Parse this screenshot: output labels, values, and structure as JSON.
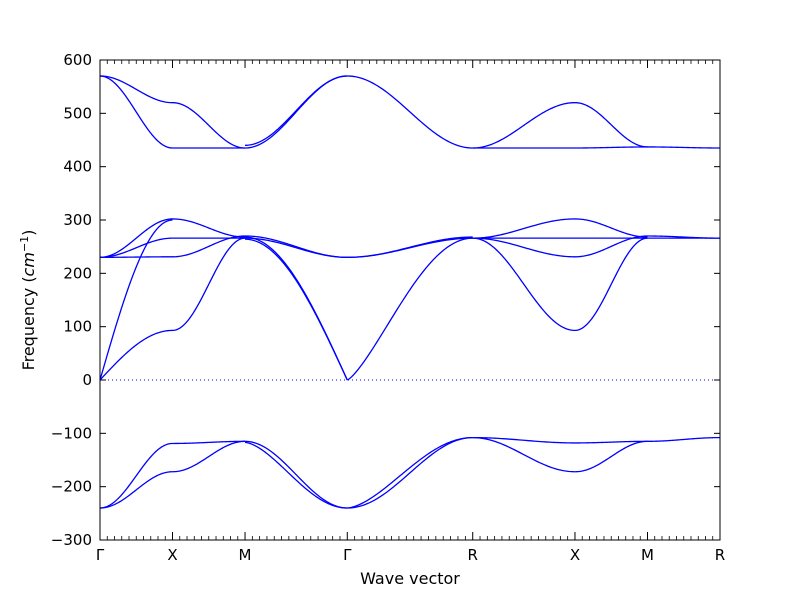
{
  "chart_data": {
    "type": "line",
    "title": "",
    "xlabel": "Wave vector",
    "ylabel": "Frequency ($cm^{-1}$)",
    "ylim": [
      -300,
      600
    ],
    "yticks": [
      -300,
      -200,
      -100,
      0,
      100,
      200,
      300,
      400,
      500,
      600
    ],
    "zero_line": 0,
    "line_color": "#0000ff",
    "frame_color": "#000000",
    "k_points": [
      {
        "label": "Γ",
        "x": 0
      },
      {
        "label": "X",
        "x": 1
      },
      {
        "label": "M",
        "x": 2
      },
      {
        "label": "Γ",
        "x": 3.41
      },
      {
        "label": "R",
        "x": 5.14
      },
      {
        "label": "X",
        "x": 6.55
      },
      {
        "label": "M",
        "x": 7.55
      },
      {
        "label": "R",
        "x": 8.55
      }
    ],
    "xlim": [
      0,
      8.55
    ],
    "branches": [
      {
        "segment": "Γ-X",
        "from": 0,
        "to": 1,
        "start": 570,
        "end": 520,
        "shape": "cos"
      },
      {
        "segment": "Γ-X",
        "from": 0,
        "to": 1,
        "start": 570,
        "end": 435,
        "shape": "cos"
      },
      {
        "segment": "X-M",
        "from": 1,
        "to": 2,
        "start": 520,
        "end": 435,
        "shape": "cos"
      },
      {
        "segment": "X-M",
        "from": 1,
        "to": 2,
        "start": 435,
        "end": 435,
        "shape": "cos"
      },
      {
        "segment": "M-Γ",
        "from": 2,
        "to": 3.41,
        "start": 435,
        "end": 570,
        "shape": "cos"
      },
      {
        "segment": "M-Γ",
        "from": 2,
        "to": 3.41,
        "start": 440,
        "end": 570,
        "shape": "cos"
      },
      {
        "segment": "Γ-R",
        "from": 3.41,
        "to": 5.14,
        "start": 570,
        "end": 435,
        "shape": "cos"
      },
      {
        "segment": "R-X",
        "from": 5.14,
        "to": 6.55,
        "start": 435,
        "end": 520,
        "shape": "cos"
      },
      {
        "segment": "R-X",
        "from": 5.14,
        "to": 6.55,
        "start": 435,
        "end": 435,
        "shape": "cos"
      },
      {
        "segment": "X-M",
        "from": 6.55,
        "to": 7.55,
        "start": 520,
        "end": 437,
        "shape": "cos"
      },
      {
        "segment": "X-M",
        "from": 6.55,
        "to": 7.55,
        "start": 435,
        "end": 437,
        "shape": "cos"
      },
      {
        "segment": "M-R",
        "from": 7.55,
        "to": 8.55,
        "start": 437,
        "end": 435,
        "shape": "cos"
      },
      {
        "segment": "Γ-X",
        "from": 0,
        "to": 1,
        "start": 230,
        "end": 302,
        "shape": "cos"
      },
      {
        "segment": "Γ-X",
        "from": 0,
        "to": 1,
        "start": 230,
        "end": 266,
        "shape": "cos"
      },
      {
        "segment": "Γ-X",
        "from": 0,
        "to": 1,
        "start": 230,
        "end": 231,
        "shape": "cos"
      },
      {
        "segment": "Γ-X",
        "from": 0,
        "to": 1,
        "start": 0,
        "end": 300,
        "shape": "acoustic"
      },
      {
        "segment": "Γ-X",
        "from": 0,
        "to": 1,
        "start": 0,
        "end": 93,
        "shape": "acoustic"
      },
      {
        "segment": "X-M",
        "from": 1,
        "to": 2,
        "start": 302,
        "end": 268,
        "shape": "cos"
      },
      {
        "segment": "X-M",
        "from": 1,
        "to": 2,
        "start": 266,
        "end": 266,
        "shape": "cos"
      },
      {
        "segment": "X-M",
        "from": 1,
        "to": 2,
        "start": 231,
        "end": 270,
        "shape": "cos"
      },
      {
        "segment": "X-M",
        "from": 1,
        "to": 2,
        "start": 93,
        "end": 266,
        "shape": "cos"
      },
      {
        "segment": "M-Γ",
        "from": 2,
        "to": 3.41,
        "start": 270,
        "end": 230,
        "shape": "cos"
      },
      {
        "segment": "M-Γ",
        "from": 2,
        "to": 3.41,
        "start": 266,
        "end": 230,
        "shape": "cos"
      },
      {
        "segment": "M-Γ",
        "from": 2,
        "to": 3.41,
        "start": 268,
        "end": 0,
        "shape": "cos"
      },
      {
        "segment": "M-Γ",
        "from": 2,
        "to": 3.41,
        "start": 264,
        "end": 0,
        "shape": "cos_soft"
      },
      {
        "segment": "Γ-R",
        "from": 3.41,
        "to": 5.14,
        "start": 230,
        "end": 266,
        "shape": "cos"
      },
      {
        "segment": "Γ-R",
        "from": 3.41,
        "to": 5.14,
        "start": 230,
        "end": 268,
        "shape": "cos"
      },
      {
        "segment": "Γ-R",
        "from": 3.41,
        "to": 5.14,
        "start": 0,
        "end": 266,
        "shape": "acoustic_long"
      },
      {
        "segment": "R-X",
        "from": 5.14,
        "to": 6.55,
        "start": 266,
        "end": 302,
        "shape": "cos"
      },
      {
        "segment": "R-X",
        "from": 5.14,
        "to": 6.55,
        "start": 266,
        "end": 266,
        "shape": "cos"
      },
      {
        "segment": "R-X",
        "from": 5.14,
        "to": 6.55,
        "start": 266,
        "end": 231,
        "shape": "cos"
      },
      {
        "segment": "R-X",
        "from": 5.14,
        "to": 6.55,
        "start": 266,
        "end": 93,
        "shape": "cos"
      },
      {
        "segment": "X-M",
        "from": 6.55,
        "to": 7.55,
        "start": 302,
        "end": 268,
        "shape": "cos"
      },
      {
        "segment": "X-M",
        "from": 6.55,
        "to": 7.55,
        "start": 266,
        "end": 266,
        "shape": "cos"
      },
      {
        "segment": "X-M",
        "from": 6.55,
        "to": 7.55,
        "start": 231,
        "end": 270,
        "shape": "cos"
      },
      {
        "segment": "X-M",
        "from": 6.55,
        "to": 7.55,
        "start": 93,
        "end": 266,
        "shape": "cos"
      },
      {
        "segment": "M-R",
        "from": 7.55,
        "to": 8.55,
        "start": 270,
        "end": 266,
        "shape": "cos"
      },
      {
        "segment": "M-R",
        "from": 7.55,
        "to": 8.55,
        "start": 266,
        "end": 266,
        "shape": "cos"
      },
      {
        "segment": "Γ-X",
        "from": 0,
        "to": 1,
        "start": -240,
        "end": -119,
        "shape": "cos"
      },
      {
        "segment": "Γ-X",
        "from": 0,
        "to": 1,
        "start": -240,
        "end": -172,
        "shape": "cos"
      },
      {
        "segment": "X-M",
        "from": 1,
        "to": 2,
        "start": -119,
        "end": -115,
        "shape": "cos"
      },
      {
        "segment": "X-M",
        "from": 1,
        "to": 2,
        "start": -172,
        "end": -115,
        "shape": "cos"
      },
      {
        "segment": "M-Γ",
        "from": 2,
        "to": 3.41,
        "start": -115,
        "end": -240,
        "shape": "cos"
      },
      {
        "segment": "M-Γ",
        "from": 2,
        "to": 3.41,
        "start": -117,
        "end": -240,
        "shape": "cos_soft"
      },
      {
        "segment": "Γ-R",
        "from": 3.41,
        "to": 5.14,
        "start": -240,
        "end": -108,
        "shape": "cos"
      },
      {
        "segment": "Γ-R",
        "from": 3.41,
        "to": 5.14,
        "start": -240,
        "end": -108,
        "shape": "cos_soft"
      },
      {
        "segment": "R-X",
        "from": 5.14,
        "to": 6.55,
        "start": -108,
        "end": -118,
        "shape": "cos"
      },
      {
        "segment": "R-X",
        "from": 5.14,
        "to": 6.55,
        "start": -108,
        "end": -172,
        "shape": "cos"
      },
      {
        "segment": "X-M",
        "from": 6.55,
        "to": 7.55,
        "start": -118,
        "end": -115,
        "shape": "cos"
      },
      {
        "segment": "X-M",
        "from": 6.55,
        "to": 7.55,
        "start": -172,
        "end": -115,
        "shape": "cos"
      },
      {
        "segment": "M-R",
        "from": 7.55,
        "to": 8.55,
        "start": -115,
        "end": -108,
        "shape": "cos"
      }
    ]
  }
}
